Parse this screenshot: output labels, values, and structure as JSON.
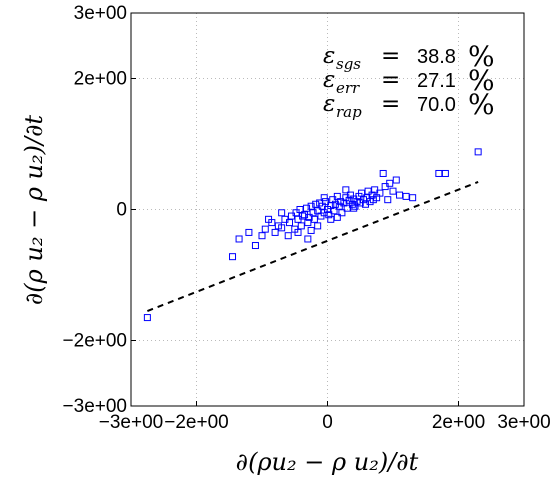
{
  "chart_data": {
    "type": "scatter",
    "xlabel": "∂(ρu₂ − ρ u₂)/∂t",
    "ylabel": "∂(ρ u₂ − ρ u₂)/∂t",
    "xlim": [
      -3,
      3
    ],
    "ylim": [
      -3,
      3
    ],
    "x_ticks": [
      "−3e+00",
      "−2e+00",
      "0",
      "2e+00",
      "3e+00"
    ],
    "y_ticks": [
      "−3e+00",
      "−2e+00",
      "0",
      "2e+00",
      "3e+00"
    ],
    "grid": true,
    "marker": "open-square",
    "marker_color": "#0000ff",
    "fit_line": {
      "style": "dashed",
      "color": "#000000",
      "x": [
        -2.75,
        2.3
      ],
      "y": [
        -1.55,
        0.42
      ]
    },
    "annotations": [
      {
        "symbol": "ε",
        "subscript": "sgs",
        "value": "38.8",
        "unit": "%"
      },
      {
        "symbol": "ε",
        "subscript": "err",
        "value": "27.1",
        "unit": "%"
      },
      {
        "symbol": "ε",
        "subscript": "rap",
        "value": "70.0",
        "unit": "%"
      }
    ],
    "points": [
      [
        -2.75,
        -1.65
      ],
      [
        -1.45,
        -0.72
      ],
      [
        -1.35,
        -0.45
      ],
      [
        -1.2,
        -0.35
      ],
      [
        -1.1,
        -0.55
      ],
      [
        -1.0,
        -0.4
      ],
      [
        -0.95,
        -0.3
      ],
      [
        -0.9,
        -0.15
      ],
      [
        -0.85,
        -0.2
      ],
      [
        -0.8,
        -0.35
      ],
      [
        -0.75,
        -0.25
      ],
      [
        -0.7,
        -0.05
      ],
      [
        -0.65,
        -0.15
      ],
      [
        -0.6,
        -0.4
      ],
      [
        -0.58,
        -0.2
      ],
      [
        -0.55,
        -0.1
      ],
      [
        -0.5,
        -0.3
      ],
      [
        -0.48,
        -0.05
      ],
      [
        -0.45,
        -0.15
      ],
      [
        -0.42,
        0.0
      ],
      [
        -0.4,
        -0.25
      ],
      [
        -0.38,
        -0.1
      ],
      [
        -0.35,
        -0.08
      ],
      [
        -0.32,
        0.02
      ],
      [
        -0.3,
        -0.2
      ],
      [
        -0.28,
        -0.12
      ],
      [
        -0.25,
        0.05
      ],
      [
        -0.22,
        -0.05
      ],
      [
        -0.2,
        -0.15
      ],
      [
        -0.18,
        0.08
      ],
      [
        -0.15,
        -0.02
      ],
      [
        -0.12,
        0.1
      ],
      [
        -0.1,
        -0.1
      ],
      [
        -0.08,
        0.05
      ],
      [
        -0.05,
        -0.05
      ],
      [
        -0.03,
        0.12
      ],
      [
        0.0,
        0.0
      ],
      [
        0.02,
        -0.08
      ],
      [
        0.05,
        0.06
      ],
      [
        0.08,
        0.15
      ],
      [
        0.1,
        -0.02
      ],
      [
        0.12,
        0.08
      ],
      [
        0.15,
        0.2
      ],
      [
        0.18,
        0.05
      ],
      [
        0.2,
        0.12
      ],
      [
        0.22,
        -0.05
      ],
      [
        0.25,
        0.1
      ],
      [
        0.28,
        0.18
      ],
      [
        0.3,
        0.02
      ],
      [
        0.33,
        0.14
      ],
      [
        0.35,
        0.22
      ],
      [
        0.38,
        0.08
      ],
      [
        0.4,
        0.16
      ],
      [
        0.42,
        0.05
      ],
      [
        0.45,
        0.12
      ],
      [
        0.48,
        0.2
      ],
      [
        0.5,
        0.1
      ],
      [
        0.52,
        0.25
      ],
      [
        0.55,
        0.15
      ],
      [
        0.58,
        0.08
      ],
      [
        0.6,
        0.18
      ],
      [
        0.62,
        0.28
      ],
      [
        0.65,
        0.12
      ],
      [
        0.68,
        0.22
      ],
      [
        0.7,
        0.15
      ],
      [
        0.72,
        0.3
      ],
      [
        0.75,
        0.18
      ],
      [
        0.8,
        0.25
      ],
      [
        0.85,
        0.55
      ],
      [
        0.88,
        0.35
      ],
      [
        0.92,
        0.15
      ],
      [
        0.95,
        0.4
      ],
      [
        1.0,
        0.28
      ],
      [
        1.05,
        0.45
      ],
      [
        1.1,
        0.22
      ],
      [
        1.2,
        0.2
      ],
      [
        1.3,
        0.18
      ],
      [
        1.7,
        0.55
      ],
      [
        1.8,
        0.55
      ],
      [
        2.3,
        0.88
      ],
      [
        -0.3,
        -0.45
      ],
      [
        0.15,
        -0.12
      ],
      [
        -0.05,
        0.18
      ],
      [
        -0.7,
        -0.28
      ],
      [
        0.05,
        -0.15
      ],
      [
        -0.45,
        -0.35
      ],
      [
        0.28,
        0.3
      ],
      [
        -0.15,
        -0.25
      ],
      [
        0.4,
        0.02
      ],
      [
        -0.25,
        -0.32
      ]
    ]
  }
}
